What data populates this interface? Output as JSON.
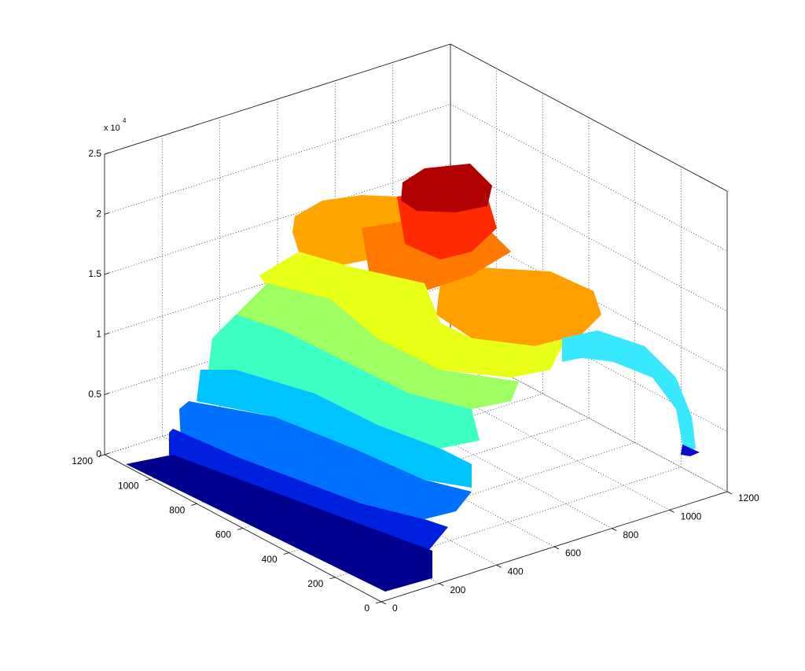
{
  "chart_data": {
    "type": "surface3d",
    "z_multiplier": "x 10",
    "z_exponent": "4",
    "xlim": [
      0,
      1200
    ],
    "xticks": [
      0,
      200,
      400,
      600,
      800,
      1000,
      1200
    ],
    "ylim": [
      0,
      1200
    ],
    "yticks": [
      0,
      200,
      400,
      600,
      800,
      1000,
      1200
    ],
    "zlim": [
      0,
      25000
    ],
    "zticks": [
      0,
      {
        "value": 5000,
        "label": "0.5"
      },
      {
        "value": 10000,
        "label": "1"
      },
      {
        "value": 15000,
        "label": "1.5"
      },
      {
        "value": 20000,
        "label": "2"
      },
      {
        "value": 25000,
        "label": "2.5"
      }
    ],
    "grid": true
  }
}
